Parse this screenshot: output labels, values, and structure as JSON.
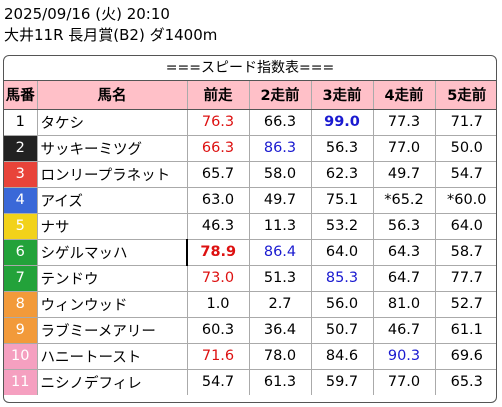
{
  "header": {
    "datetime": "2025/09/16 (火) 20:10",
    "race": "大井11R 長月賞(B2) ダ1400m"
  },
  "banner": "===スピード指数表===",
  "columns": [
    "馬番",
    "馬名",
    "前走",
    "2走前",
    "3走前",
    "4走前",
    "5走前"
  ],
  "gate_colors": {
    "1": {
      "bg": "#ffffff",
      "fg": "#000000"
    },
    "2": {
      "bg": "#222222",
      "fg": "#ffffff"
    },
    "3": {
      "bg": "#e8443a",
      "fg": "#ffffff"
    },
    "4": {
      "bg": "#3a68d8",
      "fg": "#ffffff"
    },
    "5": {
      "bg": "#f2d21a",
      "fg": "#ffffff"
    },
    "6": {
      "bg": "#23a23a",
      "fg": "#ffffff"
    },
    "7": {
      "bg": "#23a23a",
      "fg": "#ffffff"
    },
    "8": {
      "bg": "#f29a3a",
      "fg": "#ffffff"
    },
    "9": {
      "bg": "#f29a3a",
      "fg": "#ffffff"
    },
    "10": {
      "bg": "#f5a0c0",
      "fg": "#ffffff"
    },
    "11": {
      "bg": "#f5a0c0",
      "fg": "#ffffff"
    }
  },
  "rows": [
    {
      "num": "1",
      "name": "タケシ",
      "v": [
        "76.3",
        "66.3",
        "99.0",
        "77.3",
        "71.7"
      ],
      "style": [
        "red",
        "",
        "blue bold",
        "",
        ""
      ]
    },
    {
      "num": "2",
      "name": "サッキーミツグ",
      "v": [
        "66.3",
        "86.3",
        "56.3",
        "77.0",
        "50.0"
      ],
      "style": [
        "red",
        "blue",
        "",
        "",
        ""
      ]
    },
    {
      "num": "3",
      "name": "ロンリープラネット",
      "v": [
        "65.7",
        "58.0",
        "62.3",
        "49.7",
        "54.7"
      ],
      "style": [
        "",
        "",
        "",
        "",
        ""
      ]
    },
    {
      "num": "4",
      "name": "アイズ",
      "v": [
        "63.0",
        "49.7",
        "75.1",
        "*65.2",
        "*60.0"
      ],
      "style": [
        "",
        "",
        "",
        "",
        ""
      ]
    },
    {
      "num": "5",
      "name": "ナサ",
      "v": [
        "46.3",
        "11.3",
        "53.2",
        "56.3",
        "64.0"
      ],
      "style": [
        "",
        "",
        "",
        "",
        ""
      ]
    },
    {
      "num": "6",
      "name": "シゲルマッハ",
      "v": [
        "78.9",
        "86.4",
        "64.0",
        "64.3",
        "58.7"
      ],
      "style": [
        "red bold",
        "blue",
        "",
        "",
        ""
      ]
    },
    {
      "num": "7",
      "name": "テンドウ",
      "v": [
        "73.0",
        "51.3",
        "85.3",
        "64.7",
        "77.7"
      ],
      "style": [
        "red",
        "",
        "blue",
        "",
        ""
      ]
    },
    {
      "num": "8",
      "name": "ウィンウッド",
      "v": [
        "1.0",
        "2.7",
        "56.0",
        "81.0",
        "52.7"
      ],
      "style": [
        "",
        "",
        "",
        "",
        ""
      ]
    },
    {
      "num": "9",
      "name": "ラブミーメアリー",
      "v": [
        "60.3",
        "36.4",
        "50.7",
        "46.7",
        "61.1"
      ],
      "style": [
        "",
        "",
        "",
        "",
        ""
      ]
    },
    {
      "num": "10",
      "name": "ハニートースト",
      "v": [
        "71.6",
        "78.0",
        "84.6",
        "90.3",
        "69.6"
      ],
      "style": [
        "red",
        "",
        "",
        "blue",
        ""
      ]
    },
    {
      "num": "11",
      "name": "ニシノデフィレ",
      "v": [
        "54.7",
        "61.3",
        "59.7",
        "77.0",
        "65.3"
      ],
      "style": [
        "",
        "",
        "",
        "",
        ""
      ]
    }
  ]
}
